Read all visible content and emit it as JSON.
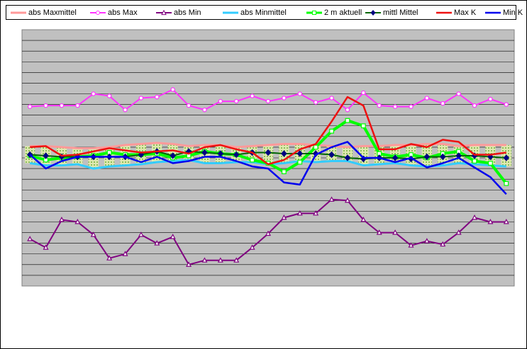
{
  "chart_data": {
    "type": "line",
    "title": "",
    "xlabel": "",
    "ylabel": "",
    "grid": true,
    "legend_position": "top",
    "y_range": [
      0,
      24
    ],
    "x": [
      1,
      2,
      3,
      4,
      5,
      6,
      7,
      8,
      9,
      10,
      11,
      12,
      13,
      14,
      15,
      16,
      17,
      18,
      19,
      20,
      21,
      22,
      23,
      24,
      25,
      26,
      27,
      28,
      29,
      30,
      31
    ],
    "series": [
      {
        "name": "abs Maxmittel",
        "color": "#ff9999",
        "marker": "none",
        "values": [
          13.1,
          13.1,
          13.0,
          12.9,
          12.9,
          13.0,
          13.2,
          13.3,
          13.4,
          13.3,
          13.1,
          13.2,
          13.2,
          13.0,
          13.1,
          13.2,
          13.3,
          13.3,
          13.2,
          13.1,
          13.0,
          13.1,
          13.1,
          13.2,
          13.2,
          13.3,
          13.3,
          13.1,
          13.2,
          13.2,
          13.2
        ]
      },
      {
        "name": "abs Max",
        "color": "#ff33ff",
        "marker": "circle",
        "values": [
          16.8,
          16.9,
          16.9,
          16.9,
          18.0,
          17.8,
          16.5,
          17.6,
          17.7,
          18.4,
          16.9,
          16.5,
          17.3,
          17.3,
          17.8,
          17.3,
          17.6,
          18.0,
          17.2,
          17.6,
          16.5,
          18.1,
          16.9,
          16.8,
          16.8,
          17.6,
          17.1,
          18.0,
          16.9,
          17.5,
          17.0
        ]
      },
      {
        "name": "abs Min",
        "color": "#800080",
        "marker": "triangle",
        "values": [
          4.4,
          3.6,
          6.2,
          6.0,
          4.8,
          2.6,
          3.0,
          4.8,
          4.0,
          4.6,
          2.0,
          2.4,
          2.4,
          2.4,
          3.6,
          4.9,
          6.4,
          6.8,
          6.8,
          8.1,
          8.0,
          6.2,
          5.0,
          5.0,
          3.8,
          4.2,
          3.9,
          5.0,
          6.4,
          6.0,
          6.0
        ]
      },
      {
        "name": "abs Minmittel",
        "color": "#33ccff",
        "marker": "none",
        "values": [
          11.5,
          11.3,
          11.3,
          11.4,
          11.0,
          11.2,
          11.3,
          11.4,
          11.6,
          11.7,
          11.8,
          11.5,
          11.5,
          11.6,
          11.6,
          11.4,
          11.5,
          11.7,
          11.6,
          11.7,
          11.7,
          11.3,
          11.4,
          11.5,
          11.3,
          11.2,
          11.3,
          11.5,
          11.4,
          11.3,
          11.2
        ]
      },
      {
        "name": "2 m aktuell",
        "color": "#00ff00",
        "marker": "square",
        "values": [
          12.2,
          11.8,
          12.0,
          12.1,
          12.2,
          12.5,
          12.3,
          12.3,
          12.4,
          12.0,
          12.2,
          12.6,
          12.4,
          12.3,
          11.8,
          11.5,
          10.7,
          11.6,
          13.0,
          14.5,
          15.5,
          15.0,
          12.4,
          12.1,
          12.3,
          12.0,
          12.4,
          12.6,
          11.7,
          11.5,
          9.6
        ]
      },
      {
        "name": "mittl Mittel",
        "color": "#006600",
        "marker": "diamond",
        "values": [
          12.3,
          12.2,
          12.1,
          12.1,
          12.1,
          12.1,
          12.1,
          12.3,
          12.6,
          12.2,
          12.6,
          12.5,
          12.4,
          12.3,
          12.5,
          12.5,
          12.4,
          12.4,
          12.4,
          12.3,
          12.0,
          11.9,
          12.0,
          12.0,
          11.9,
          12.1,
          12.1,
          12.2,
          12.2,
          12.1,
          12.0
        ]
      },
      {
        "name": "Max K",
        "color": "#ee1111",
        "marker": "none",
        "values": [
          13.0,
          13.1,
          12.2,
          12.3,
          12.6,
          12.9,
          12.7,
          12.5,
          12.6,
          12.7,
          12.4,
          13.0,
          13.2,
          12.8,
          12.5,
          11.4,
          11.8,
          12.8,
          13.3,
          15.4,
          17.7,
          16.9,
          12.8,
          12.8,
          13.3,
          13.0,
          13.7,
          13.5,
          12.3,
          12.3,
          12.5
        ]
      },
      {
        "name": "Min K",
        "color": "#0000ee",
        "marker": "none",
        "values": [
          12.3,
          11.0,
          11.7,
          12.1,
          12.1,
          12.1,
          12.1,
          11.6,
          12.1,
          11.5,
          11.7,
          12.1,
          12.1,
          11.7,
          11.2,
          11.0,
          9.7,
          9.5,
          12.3,
          13.0,
          13.5,
          12.0,
          12.0,
          11.6,
          12.0,
          11.1,
          11.5,
          12.0,
          11.1,
          10.2,
          8.6
        ]
      }
    ]
  }
}
